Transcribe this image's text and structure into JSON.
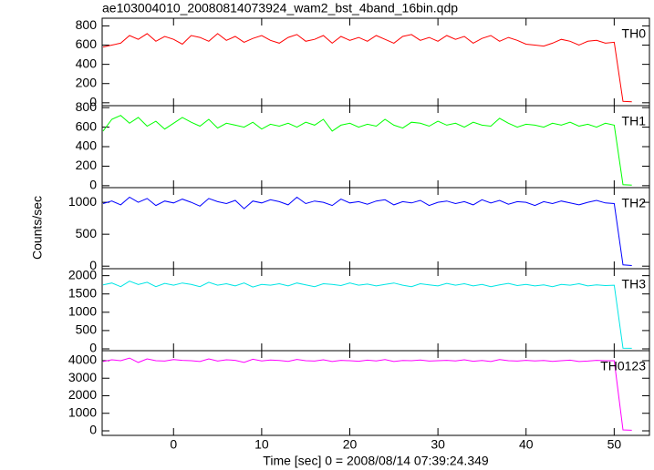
{
  "chart_data": {
    "type": "line",
    "title": "ae103004010_20080814073924_wam2_bst_4band_16bin.qdp",
    "xlabel": "Time [sec] 0 = 2008/08/14 07:39:24.349",
    "ylabel": "Counts/sec",
    "x": [
      -8,
      -7,
      -6,
      -5,
      -4,
      -3,
      -2,
      -1,
      0,
      1,
      2,
      3,
      4,
      5,
      6,
      7,
      8,
      9,
      10,
      11,
      12,
      13,
      14,
      15,
      16,
      17,
      18,
      19,
      20,
      21,
      22,
      23,
      24,
      25,
      26,
      27,
      28,
      29,
      30,
      31,
      32,
      33,
      34,
      35,
      36,
      37,
      38,
      39,
      40,
      41,
      42,
      43,
      44,
      45,
      46,
      47,
      48,
      49,
      50,
      51,
      52
    ],
    "xlim": [
      -8.1,
      54
    ],
    "xticks": [
      0,
      10,
      20,
      30,
      40,
      50
    ],
    "series": [
      {
        "name": "TH0",
        "color": "#ff0000",
        "ylim": [
          -30,
          880
        ],
        "yticks": [
          0,
          200,
          400,
          600,
          800
        ],
        "values": [
          580,
          600,
          620,
          700,
          660,
          720,
          640,
          690,
          660,
          610,
          700,
          680,
          640,
          720,
          650,
          690,
          630,
          670,
          700,
          650,
          620,
          680,
          710,
          640,
          660,
          700,
          620,
          690,
          650,
          680,
          640,
          700,
          660,
          620,
          690,
          710,
          650,
          680,
          640,
          700,
          660,
          690,
          620,
          670,
          700,
          640,
          680,
          650,
          610,
          600,
          590,
          620,
          660,
          640,
          600,
          640,
          650,
          620,
          630,
          15,
          10
        ]
      },
      {
        "name": "TH1",
        "color": "#00ff00",
        "ylim": [
          -20,
          820
        ],
        "yticks": [
          0,
          200,
          400,
          600,
          800
        ],
        "values": [
          560,
          680,
          720,
          640,
          700,
          610,
          660,
          580,
          640,
          700,
          650,
          610,
          680,
          590,
          640,
          620,
          600,
          650,
          580,
          630,
          610,
          640,
          600,
          650,
          620,
          680,
          560,
          620,
          640,
          600,
          630,
          610,
          680,
          620,
          590,
          650,
          640,
          610,
          660,
          620,
          640,
          600,
          650,
          620,
          610,
          690,
          640,
          600,
          630,
          620,
          600,
          640,
          620,
          650,
          610,
          630,
          600,
          640,
          620,
          10,
          5
        ]
      },
      {
        "name": "TH2",
        "color": "#0000ff",
        "ylim": [
          -40,
          1230
        ],
        "yticks": [
          0,
          500,
          1000
        ],
        "values": [
          980,
          1020,
          960,
          1080,
          1000,
          1060,
          950,
          1020,
          990,
          1050,
          1000,
          940,
          1060,
          1010,
          980,
          1030,
          900,
          1020,
          990,
          1040,
          1010,
          960,
          1080,
          980,
          1020,
          1000,
          950,
          1050,
          990,
          1010,
          970,
          1020,
          1040,
          960,
          1010,
          990,
          1030,
          950,
          1000,
          1020,
          980,
          1010,
          960,
          1040,
          990,
          1030,
          970,
          1010,
          1000,
          950,
          1010,
          980,
          1020,
          990,
          960,
          1000,
          1030,
          990,
          980,
          20,
          10
        ]
      },
      {
        "name": "TH3",
        "color": "#00e5e5",
        "ylim": [
          -50,
          2190
        ],
        "yticks": [
          0,
          500,
          1000,
          1500,
          2000
        ],
        "values": [
          1750,
          1800,
          1700,
          1850,
          1760,
          1820,
          1700,
          1790,
          1740,
          1800,
          1760,
          1700,
          1820,
          1740,
          1780,
          1720,
          1800,
          1690,
          1760,
          1740,
          1780,
          1720,
          1800,
          1750,
          1700,
          1780,
          1760,
          1730,
          1800,
          1740,
          1770,
          1720,
          1760,
          1800,
          1740,
          1700,
          1780,
          1750,
          1720,
          1790,
          1740,
          1780,
          1720,
          1760,
          1700,
          1750,
          1790,
          1730,
          1760,
          1720,
          1750,
          1700,
          1760,
          1740,
          1780,
          1720,
          1750,
          1730,
          1740,
          20,
          15
        ]
      },
      {
        "name": "TH0123",
        "color": "#ff00ff",
        "ylim": [
          -260,
          4570
        ],
        "yticks": [
          0,
          1000,
          2000,
          3000,
          4000
        ],
        "values": [
          3950,
          4050,
          4000,
          4150,
          3900,
          4100,
          4000,
          3980,
          4060,
          4020,
          4000,
          3950,
          4100,
          3980,
          4050,
          4020,
          3900,
          4080,
          3990,
          4040,
          4010,
          3960,
          4070,
          4000,
          3980,
          4050,
          3950,
          4020,
          4000,
          3970,
          4030,
          3990,
          4060,
          3950,
          4010,
          4000,
          4040,
          3980,
          4000,
          4020,
          3990,
          4050,
          3970,
          4010,
          3950,
          4060,
          4000,
          3980,
          4020,
          3990,
          4010,
          3960,
          4000,
          4030,
          3950,
          3980,
          4020,
          4000,
          4000,
          50,
          30
        ]
      }
    ]
  }
}
